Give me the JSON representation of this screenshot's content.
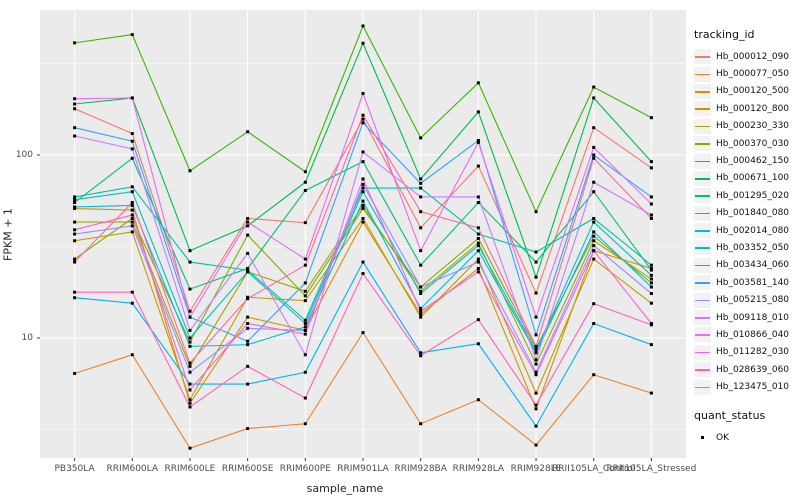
{
  "figure": {
    "x_axis_title": "sample_name",
    "y_axis_title": "FPKM + 1",
    "y_tick_labels": [
      "100",
      "10"
    ]
  },
  "legend": {
    "tracking_title": "tracking_id",
    "quant_title": "quant_status",
    "quant_items": [
      {
        "label": "OK",
        "symbol": "black-square"
      }
    ]
  },
  "chart_data": {
    "type": "line",
    "x_categories": [
      "PB350LA",
      "RRIM600LA",
      "RRIM600LE",
      "RRIM600SE",
      "RRIM600PE",
      "RRIM901LA",
      "RRIM928BA",
      "RRIM928LA",
      "RRIM928LE",
      "RRII105LA_Control",
      "RRII105LA_Stressed"
    ],
    "xlabel": "sample_name",
    "ylabel": "FPKM + 1",
    "y_scale": "log10",
    "ylim": [
      2,
      600
    ],
    "y_major_gridlines": [
      10,
      100
    ],
    "y_minor_gridlines": [
      3.162,
      31.62,
      316.2
    ],
    "grid": true,
    "panel_bg": "#EBEBEB",
    "gridline_color": "#FFFFFF",
    "point_color": "#000000",
    "point_shape": "square",
    "legend_position": "right",
    "series": [
      {
        "name": "Hb_000012_090",
        "color": "#F8766D",
        "values": [
          179,
          131,
          14,
          45,
          42.7,
          157,
          40,
          87,
          17.6,
          141,
          85
        ]
      },
      {
        "name": "Hb_000077_050",
        "color": "#EA8331",
        "values": [
          6.4,
          8.1,
          2.5,
          3.2,
          3.4,
          10.7,
          3.4,
          4.6,
          2.6,
          6.3,
          5.0
        ]
      },
      {
        "name": "Hb_000120_500",
        "color": "#D89000",
        "values": [
          51,
          50,
          4.4,
          13,
          11,
          43,
          13.5,
          24,
          4.1,
          30,
          24
        ]
      },
      {
        "name": "Hb_000120_800",
        "color": "#C09B00",
        "values": [
          34,
          38,
          4.6,
          16.7,
          16,
          45,
          13,
          27,
          5.0,
          27,
          15.5
        ]
      },
      {
        "name": "Hb_000230_330",
        "color": "#A3A500",
        "values": [
          43,
          43,
          7.0,
          23,
          18,
          53,
          18,
          33,
          7.2,
          34,
          21
        ]
      },
      {
        "name": "Hb_000370_030",
        "color": "#7CAE00",
        "values": [
          27,
          45,
          9.5,
          36.5,
          17,
          51,
          19,
          35,
          8.8,
          36,
          20
        ]
      },
      {
        "name": "Hb_000462_150",
        "color": "#39B600",
        "values": [
          410,
          455,
          82,
          134,
          81,
          507,
          124,
          248,
          49,
          235,
          160
        ]
      },
      {
        "name": "Hb_000671_100",
        "color": "#00BB4E",
        "values": [
          190,
          205,
          30,
          41,
          71,
          408,
          74,
          172,
          21.5,
          205,
          92
        ]
      },
      {
        "name": "Hb_001295_020",
        "color": "#00BF7D",
        "values": [
          55,
          96,
          18.5,
          24,
          64,
          92,
          25,
          55,
          26,
          63,
          23.5
        ]
      },
      {
        "name": "Hb_001840_080",
        "color": "#00C1A3",
        "values": [
          59,
          67,
          26,
          23.5,
          12.5,
          66,
          66,
          37,
          29.5,
          45,
          25
        ]
      },
      {
        "name": "Hb_002014_080",
        "color": "#00BFC4",
        "values": [
          57,
          63,
          10,
          23,
          12,
          63,
          17.5,
          32,
          8.5,
          43,
          22
        ]
      },
      {
        "name": "Hb_003352_050",
        "color": "#00BAE0",
        "values": [
          52,
          53,
          9,
          9.2,
          11.5,
          56,
          14.5,
          30,
          8.3,
          38,
          19
        ]
      },
      {
        "name": "Hb_003434_060",
        "color": "#00B0F6",
        "values": [
          16.6,
          15.5,
          5.6,
          5.6,
          6.5,
          26,
          8.3,
          9.3,
          3.3,
          12,
          9.2
        ]
      },
      {
        "name": "Hb_003581_140",
        "color": "#35A2FF",
        "values": [
          141,
          119,
          13,
          9.6,
          20,
          150,
          70,
          120,
          10.4,
          100,
          59
        ]
      },
      {
        "name": "Hb_005215_080",
        "color": "#9590FF",
        "values": [
          37,
          41,
          6.5,
          11.3,
          11,
          69,
          19,
          26,
          6.5,
          32,
          17.5
        ]
      },
      {
        "name": "Hb_009118_010",
        "color": "#C77CFF",
        "values": [
          127,
          108,
          11,
          29,
          8.1,
          104,
          59,
          59,
          7.6,
          71,
          47
        ]
      },
      {
        "name": "Hb_010866_040",
        "color": "#E76BF3",
        "values": [
          203,
          205,
          13,
          43,
          27,
          217,
          30,
          117,
          13,
          110,
          54
        ]
      },
      {
        "name": "Hb_011282_030",
        "color": "#FA62DB",
        "values": [
          39,
          47,
          5.2,
          12,
          10.5,
          74,
          14,
          23,
          6.3,
          30,
          12
        ]
      },
      {
        "name": "Hb_028639_060",
        "color": "#FF62BC",
        "values": [
          17.8,
          17.8,
          4.2,
          7.0,
          4.7,
          22.5,
          8.0,
          12.6,
          4.3,
          15.4,
          11.8
        ]
      },
      {
        "name": "Hb_123475_010",
        "color": "#FF6A98",
        "values": [
          26,
          55,
          7.3,
          16.4,
          25,
          165,
          49,
          40,
          9.0,
          96,
          45
        ]
      }
    ]
  }
}
